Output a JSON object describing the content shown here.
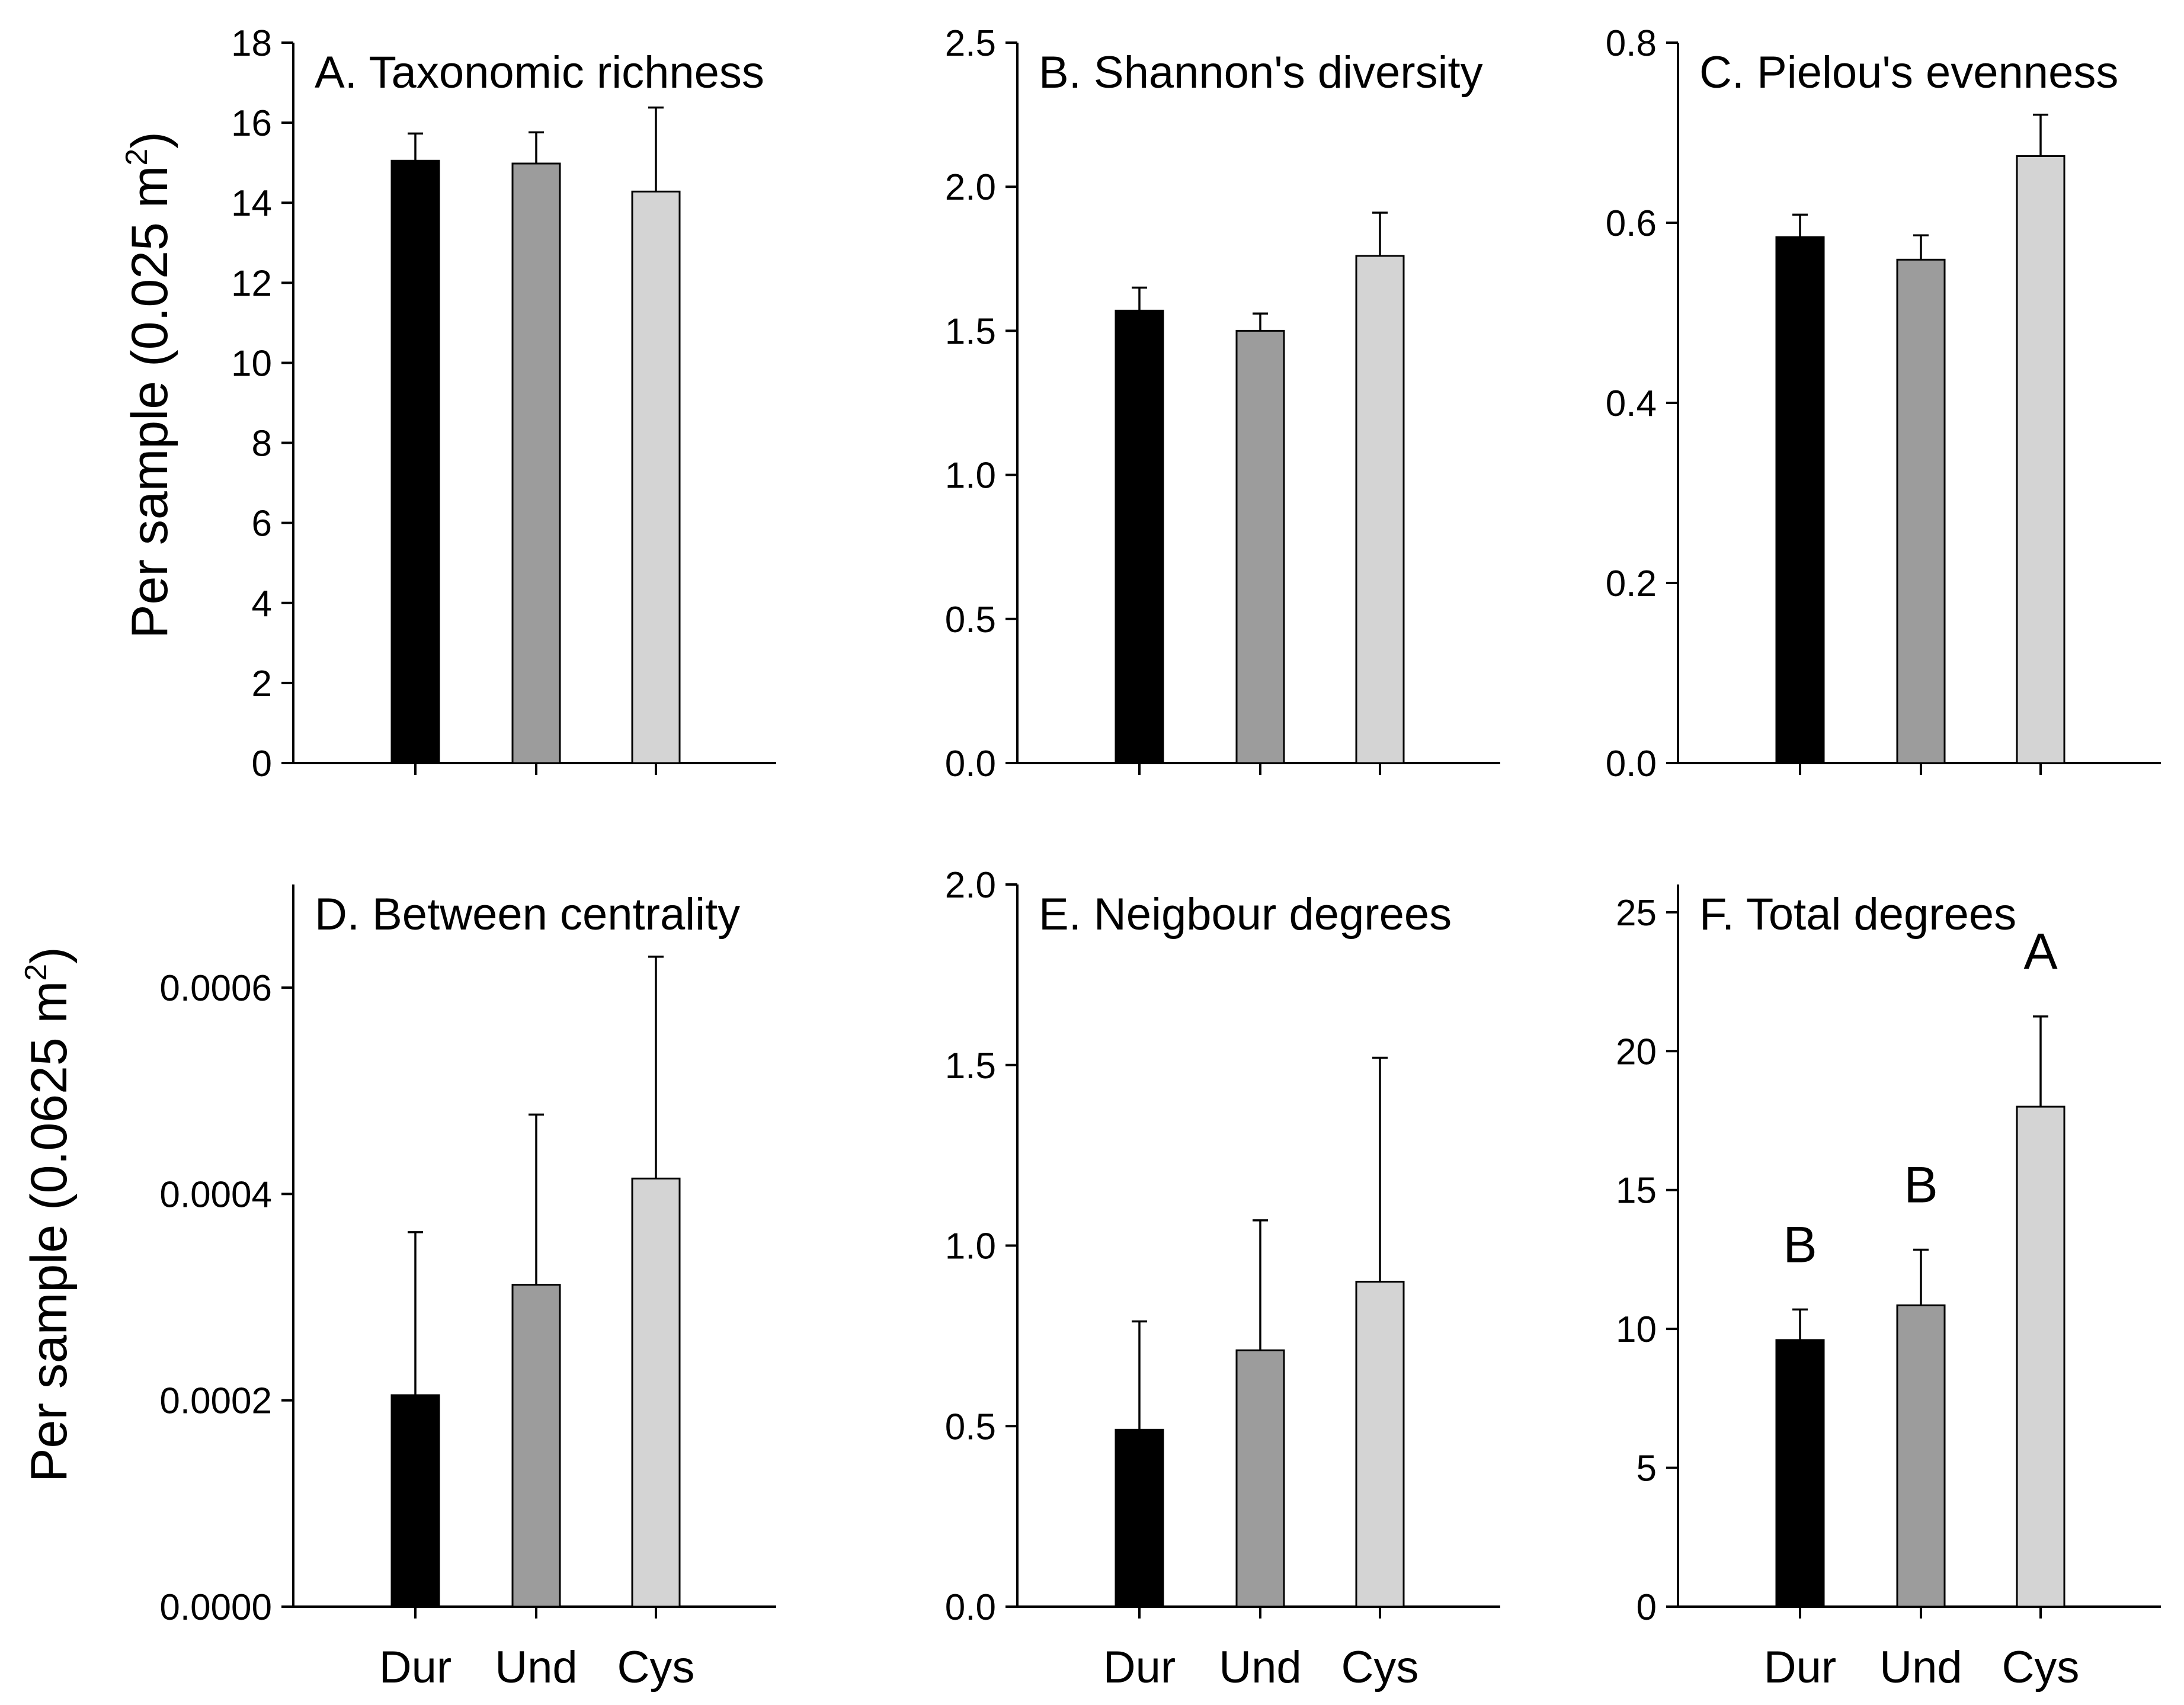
{
  "figure": {
    "ylabel_top": "Per sample (0.025 m",
    "ylabel_top_sup": "2",
    "ylabel_top_close": ")",
    "ylabel_bottom": "Per sample (0.0625 m",
    "ylabel_bottom_sup": "2",
    "ylabel_bottom_close": ")"
  },
  "colors": {
    "Dur": "#000000",
    "Und": "#9c9c9c",
    "Cys": "#d4d4d4"
  },
  "chart_data": [
    {
      "id": "A",
      "type": "bar",
      "title": "A. Taxonomic richness",
      "categories": [
        "Dur",
        "Und",
        "Cys"
      ],
      "values": [
        15.05,
        14.98,
        14.28
      ],
      "errors": [
        0.68,
        0.78,
        2.1
      ],
      "ylim": [
        0,
        18
      ],
      "yticks": [
        "0",
        "2",
        "4",
        "6",
        "8",
        "10",
        "12",
        "14",
        "16",
        "18"
      ],
      "ytick_values": [
        0,
        2,
        4,
        6,
        8,
        10,
        12,
        14,
        16,
        18
      ],
      "show_xlabels": false,
      "letters": [
        "",
        "",
        ""
      ]
    },
    {
      "id": "B",
      "type": "bar",
      "title": "B. Shannon's diversity",
      "categories": [
        "Dur",
        "Und",
        "Cys"
      ],
      "values": [
        1.57,
        1.5,
        1.76
      ],
      "errors": [
        0.08,
        0.06,
        0.15
      ],
      "ylim": [
        0,
        2.5
      ],
      "yticks": [
        "0.0",
        "0.5",
        "1.0",
        "1.5",
        "2.0",
        "2.5"
      ],
      "ytick_values": [
        0,
        0.5,
        1.0,
        1.5,
        2.0,
        2.5
      ],
      "show_xlabels": false,
      "letters": [
        "",
        "",
        ""
      ]
    },
    {
      "id": "C",
      "type": "bar",
      "title": "C. Pielou's evenness",
      "categories": [
        "Dur",
        "Und",
        "Cys"
      ],
      "values": [
        0.584,
        0.559,
        0.674
      ],
      "errors": [
        0.025,
        0.027,
        0.046
      ],
      "ylim": [
        0,
        0.8
      ],
      "yticks": [
        "0.0",
        "0.2",
        "0.4",
        "0.6",
        "0.8"
      ],
      "ytick_values": [
        0,
        0.2,
        0.4,
        0.6,
        0.8
      ],
      "show_xlabels": false,
      "letters": [
        "",
        "",
        ""
      ]
    },
    {
      "id": "D",
      "type": "bar",
      "title": "D. Between centrality",
      "categories": [
        "Dur",
        "Und",
        "Cys"
      ],
      "values": [
        0.000205,
        0.000312,
        0.000415
      ],
      "errors": [
        0.000158,
        0.000165,
        0.000215
      ],
      "ylim": [
        0,
        0.0007
      ],
      "yticks": [
        "0.0000",
        "0.0002",
        "0.0004",
        "0.0006"
      ],
      "ytick_values": [
        0,
        0.0002,
        0.0004,
        0.0006
      ],
      "show_xlabels": true,
      "letters": [
        "",
        "",
        ""
      ]
    },
    {
      "id": "E",
      "type": "bar",
      "title": "E. Neigbour degrees",
      "categories": [
        "Dur",
        "Und",
        "Cys"
      ],
      "values": [
        0.49,
        0.71,
        0.9
      ],
      "errors": [
        0.3,
        0.36,
        0.62
      ],
      "ylim": [
        0,
        2.0
      ],
      "yticks": [
        "0.0",
        "0.5",
        "1.0",
        "1.5",
        "2.0"
      ],
      "ytick_values": [
        0,
        0.5,
        1.0,
        1.5,
        2.0
      ],
      "show_xlabels": true,
      "letters": [
        "",
        "",
        ""
      ]
    },
    {
      "id": "F",
      "type": "bar",
      "title": "F. Total degrees",
      "categories": [
        "Dur",
        "Und",
        "Cys"
      ],
      "values": [
        9.6,
        10.85,
        18.0
      ],
      "errors": [
        1.1,
        2.0,
        3.25
      ],
      "ylim": [
        0,
        26
      ],
      "yticks": [
        "0",
        "5",
        "10",
        "15",
        "20",
        "25"
      ],
      "ytick_values": [
        0,
        5,
        10,
        15,
        20,
        25
      ],
      "show_xlabels": true,
      "letters": [
        "B",
        "B",
        "A"
      ]
    }
  ]
}
